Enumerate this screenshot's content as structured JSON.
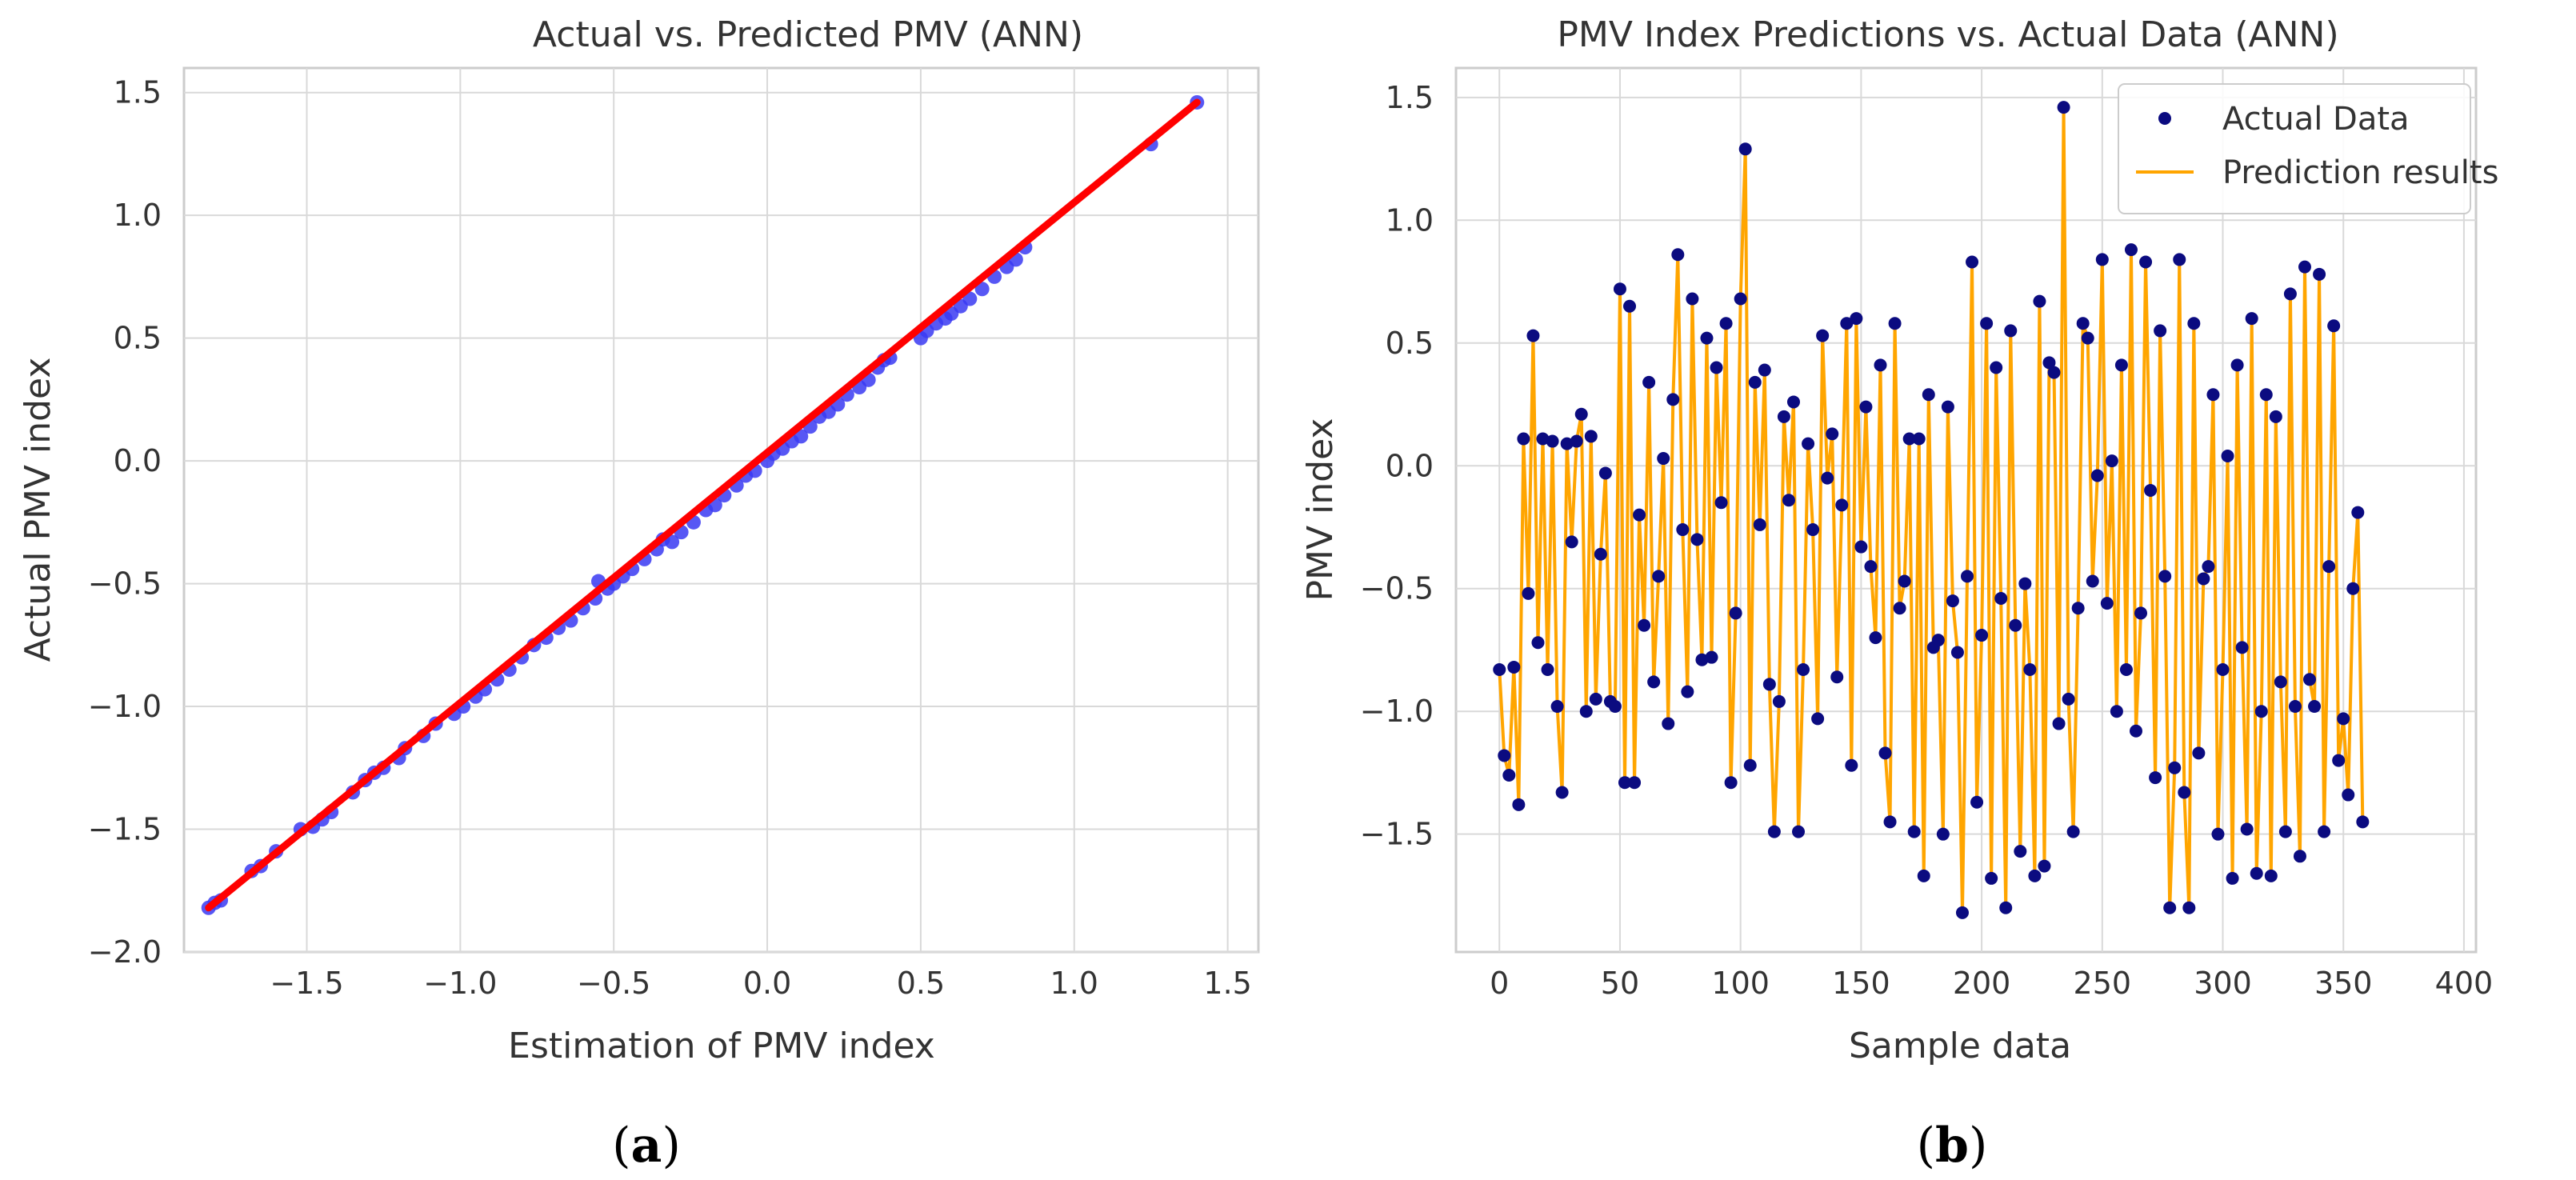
{
  "colors": {
    "scatter_points": "#3a3af2",
    "fit_line": "#ff0000",
    "actual_points": "#0b0b80",
    "prediction_line": "#ffa500",
    "grid": "#d9d9d9",
    "spine": "#cccccc"
  },
  "panel_labels": {
    "a": "a",
    "b": "b"
  },
  "chart_data": [
    {
      "type": "scatter",
      "title": "Actual vs. Predicted PMV (ANN)",
      "xlabel": "Estimation of PMV index",
      "ylabel": "Actual PMV index",
      "xlim": [
        -1.9,
        1.6
      ],
      "ylim": [
        -2.0,
        1.6
      ],
      "xticks": [
        -1.5,
        -1.0,
        -0.5,
        0.0,
        0.5,
        1.0,
        1.5
      ],
      "yticks": [
        -2.0,
        -1.5,
        -1.0,
        -0.5,
        0.0,
        0.5,
        1.0,
        1.5
      ],
      "xtick_labels": [
        "−1.5",
        "−1.0",
        "−0.5",
        "0.0",
        "0.5",
        "1.0",
        "1.5"
      ],
      "ytick_labels": [
        "−2.0",
        "−1.5",
        "−1.0",
        "−0.5",
        "0.0",
        "0.5",
        "1.0",
        "1.5"
      ],
      "grid": true,
      "points": [
        [
          -1.82,
          -1.82
        ],
        [
          -1.8,
          -1.8
        ],
        [
          -1.78,
          -1.79
        ],
        [
          -1.68,
          -1.67
        ],
        [
          -1.65,
          -1.65
        ],
        [
          -1.6,
          -1.59
        ],
        [
          -1.52,
          -1.5
        ],
        [
          -1.48,
          -1.49
        ],
        [
          -1.45,
          -1.46
        ],
        [
          -1.42,
          -1.43
        ],
        [
          -1.35,
          -1.35
        ],
        [
          -1.31,
          -1.3
        ],
        [
          -1.28,
          -1.27
        ],
        [
          -1.25,
          -1.25
        ],
        [
          -1.2,
          -1.21
        ],
        [
          -1.18,
          -1.17
        ],
        [
          -1.12,
          -1.12
        ],
        [
          -1.08,
          -1.07
        ],
        [
          -1.02,
          -1.03
        ],
        [
          -0.99,
          -1.0
        ],
        [
          -0.95,
          -0.96
        ],
        [
          -0.92,
          -0.93
        ],
        [
          -0.88,
          -0.89
        ],
        [
          -0.84,
          -0.85
        ],
        [
          -0.8,
          -0.8
        ],
        [
          -0.76,
          -0.75
        ],
        [
          -0.72,
          -0.72
        ],
        [
          -0.68,
          -0.68
        ],
        [
          -0.64,
          -0.65
        ],
        [
          -0.6,
          -0.6
        ],
        [
          -0.56,
          -0.56
        ],
        [
          -0.55,
          -0.49
        ],
        [
          -0.52,
          -0.52
        ],
        [
          -0.5,
          -0.5
        ],
        [
          -0.47,
          -0.47
        ],
        [
          -0.44,
          -0.44
        ],
        [
          -0.4,
          -0.4
        ],
        [
          -0.36,
          -0.36
        ],
        [
          -0.34,
          -0.32
        ],
        [
          -0.31,
          -0.33
        ],
        [
          -0.28,
          -0.29
        ],
        [
          -0.24,
          -0.25
        ],
        [
          -0.2,
          -0.2
        ],
        [
          -0.17,
          -0.18
        ],
        [
          -0.14,
          -0.14
        ],
        [
          -0.1,
          -0.1
        ],
        [
          -0.07,
          -0.06
        ],
        [
          -0.04,
          -0.04
        ],
        [
          0.0,
          0.0
        ],
        [
          0.02,
          0.03
        ],
        [
          0.05,
          0.05
        ],
        [
          0.08,
          0.08
        ],
        [
          0.11,
          0.1
        ],
        [
          0.14,
          0.14
        ],
        [
          0.17,
          0.18
        ],
        [
          0.2,
          0.2
        ],
        [
          0.23,
          0.23
        ],
        [
          0.26,
          0.27
        ],
        [
          0.3,
          0.3
        ],
        [
          0.33,
          0.33
        ],
        [
          0.36,
          0.38
        ],
        [
          0.38,
          0.41
        ],
        [
          0.4,
          0.42
        ],
        [
          0.5,
          0.5
        ],
        [
          0.52,
          0.53
        ],
        [
          0.55,
          0.56
        ],
        [
          0.58,
          0.58
        ],
        [
          0.6,
          0.6
        ],
        [
          0.63,
          0.63
        ],
        [
          0.66,
          0.66
        ],
        [
          0.7,
          0.7
        ],
        [
          0.74,
          0.75
        ],
        [
          0.78,
          0.79
        ],
        [
          0.81,
          0.82
        ],
        [
          0.84,
          0.87
        ],
        [
          1.25,
          1.29
        ],
        [
          1.4,
          1.46
        ]
      ],
      "fit_line": {
        "x": [
          -1.82,
          1.4
        ],
        "y": [
          -1.82,
          1.46
        ]
      }
    },
    {
      "type": "line",
      "title": "PMV Index Predictions vs. Actual Data (ANN)",
      "xlabel": "Sample data",
      "ylabel": "PMV index",
      "xlim": [
        -18,
        405
      ],
      "ylim": [
        -1.98,
        1.62
      ],
      "xticks": [
        0,
        50,
        100,
        150,
        200,
        250,
        300,
        350,
        400
      ],
      "yticks": [
        -1.5,
        -1.0,
        -0.5,
        0.0,
        0.5,
        1.0,
        1.5
      ],
      "xtick_labels": [
        "0",
        "50",
        "100",
        "150",
        "200",
        "250",
        "300",
        "350",
        "400"
      ],
      "ytick_labels": [
        "−1.5",
        "−1.0",
        "−0.5",
        "0.0",
        "0.5",
        "1.0",
        "1.5"
      ],
      "grid": true,
      "legend_position": "top-right",
      "legend": [
        "Actual Data",
        "Prediction results"
      ],
      "series": [
        {
          "name": "Actual Data",
          "values": [
            -0.83,
            -1.18,
            -1.26,
            -0.82,
            -1.38,
            0.11,
            -0.52,
            0.53,
            -0.72,
            0.11,
            -0.83,
            0.1,
            -0.98,
            -1.33,
            0.09,
            -0.31,
            0.1,
            0.21,
            -1.0,
            0.12,
            -0.95,
            -0.36,
            -0.03,
            -0.96,
            -0.98,
            0.72,
            -1.29,
            0.65,
            -1.29,
            -0.2,
            -0.65,
            0.34,
            -0.88,
            -0.45,
            0.03,
            -1.05,
            0.27,
            0.86,
            -0.26,
            -0.92,
            0.68,
            -0.3,
            -0.79,
            0.52,
            -0.78,
            0.4,
            -0.15,
            0.58,
            -1.29,
            -0.6,
            0.68,
            1.29,
            -1.22,
            0.34,
            -0.24,
            0.39,
            -0.89,
            -1.49,
            -0.96,
            0.2,
            -0.14,
            0.26,
            -1.49,
            -0.83,
            0.09,
            -0.26,
            -1.03,
            0.53,
            -0.05,
            0.13,
            -0.86,
            -0.16,
            0.58,
            -1.22,
            0.6,
            -0.33,
            0.24,
            -0.41,
            -0.7,
            0.41,
            -1.17,
            -1.45,
            0.58,
            -0.58,
            -0.47,
            0.11,
            -1.49,
            0.11,
            -1.67,
            0.29,
            -0.74,
            -0.71,
            -1.5,
            0.24,
            -0.55,
            -0.76,
            -1.82,
            -0.45,
            0.83,
            -1.37,
            -0.69,
            0.58,
            -1.68,
            0.4,
            -0.54,
            -1.8,
            0.55,
            -0.65,
            -1.57,
            -0.48,
            -0.83,
            -1.67,
            0.67,
            -1.63,
            0.42,
            0.38,
            -1.05,
            1.46,
            -0.95,
            -1.49,
            -0.58,
            0.58,
            0.52,
            -0.47,
            -0.04,
            0.84,
            -0.56,
            0.02,
            -1.0,
            0.41,
            -0.83,
            0.88,
            -1.08,
            -0.6,
            0.83,
            -0.1,
            -1.27,
            0.55,
            -0.45,
            -1.8,
            -1.23,
            0.84,
            -1.33,
            -1.8,
            0.58,
            -1.17,
            -0.46,
            -0.41,
            0.29,
            -1.5,
            -0.83,
            0.04,
            -1.68,
            0.41,
            -0.74,
            -1.48,
            0.6,
            -1.66,
            -1.0,
            0.29,
            -1.67,
            0.2,
            -0.88,
            -1.49,
            0.7,
            -0.98,
            -1.59,
            0.81,
            -0.87,
            -0.98,
            0.78,
            -1.49,
            -0.41,
            0.57,
            -1.2,
            -1.03,
            -1.34,
            -0.5,
            -0.19,
            -1.45
          ]
        },
        {
          "name": "Prediction results",
          "values": [
            -0.83,
            -1.18,
            -1.26,
            -0.82,
            -1.38,
            0.11,
            -0.52,
            0.53,
            -0.72,
            0.11,
            -0.83,
            0.1,
            -0.98,
            -1.33,
            0.09,
            -0.31,
            0.1,
            0.21,
            -1.0,
            0.12,
            -0.95,
            -0.36,
            -0.03,
            -0.96,
            -0.98,
            0.72,
            -1.29,
            0.65,
            -1.29,
            -0.2,
            -0.65,
            0.34,
            -0.88,
            -0.45,
            0.03,
            -1.05,
            0.27,
            0.86,
            -0.26,
            -0.92,
            0.68,
            -0.3,
            -0.79,
            0.52,
            -0.78,
            0.4,
            -0.15,
            0.58,
            -1.29,
            -0.6,
            0.68,
            1.29,
            -1.22,
            0.34,
            -0.24,
            0.39,
            -0.89,
            -1.49,
            -0.96,
            0.2,
            -0.14,
            0.26,
            -1.49,
            -0.83,
            0.09,
            -0.26,
            -1.03,
            0.53,
            -0.05,
            0.13,
            -0.86,
            -0.16,
            0.58,
            -1.22,
            0.6,
            -0.33,
            0.24,
            -0.41,
            -0.7,
            0.41,
            -1.17,
            -1.45,
            0.58,
            -0.58,
            -0.47,
            0.11,
            -1.49,
            0.11,
            -1.67,
            0.29,
            -0.74,
            -0.71,
            -1.5,
            0.24,
            -0.55,
            -0.76,
            -1.82,
            -0.45,
            0.83,
            -1.37,
            -0.69,
            0.58,
            -1.68,
            0.4,
            -0.54,
            -1.8,
            0.55,
            -0.65,
            -1.57,
            -0.48,
            -0.83,
            -1.67,
            0.67,
            -1.63,
            0.42,
            0.38,
            -1.05,
            1.46,
            -0.95,
            -1.49,
            -0.58,
            0.58,
            0.52,
            -0.47,
            -0.04,
            0.84,
            -0.56,
            0.02,
            -1.0,
            0.41,
            -0.83,
            0.88,
            -1.08,
            -0.6,
            0.83,
            -0.1,
            -1.27,
            0.55,
            -0.45,
            -1.8,
            -1.23,
            0.84,
            -1.33,
            -1.8,
            0.58,
            -1.17,
            -0.46,
            -0.41,
            0.29,
            -1.5,
            -0.83,
            0.04,
            -1.68,
            0.41,
            -0.74,
            -1.48,
            0.6,
            -1.66,
            -1.0,
            0.29,
            -1.67,
            0.2,
            -0.88,
            -1.49,
            0.7,
            -0.98,
            -1.59,
            0.81,
            -0.87,
            -0.98,
            0.78,
            -1.49,
            -0.41,
            0.57,
            -1.2,
            -1.03,
            -1.34,
            -0.5,
            -0.19,
            -1.45
          ]
        }
      ],
      "x_step": 2
    }
  ]
}
